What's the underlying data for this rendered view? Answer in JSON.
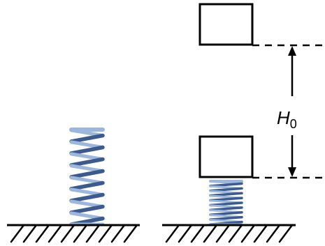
{
  "diagram": {
    "height_label": {
      "symbol": "H",
      "subscript": "0"
    }
  },
  "colors": {
    "spring_dark": "#3d5a8c",
    "spring_light": "#9db6dc",
    "lines": "#000000"
  }
}
